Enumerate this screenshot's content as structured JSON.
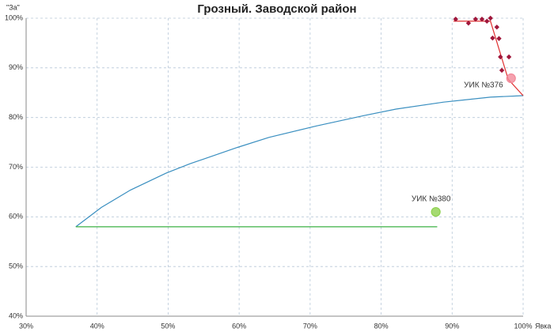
{
  "chart_data": {
    "type": "scatter",
    "title": "Грозный. Заводской район",
    "y_label": "\"За\"",
    "x_label": "Явка",
    "xlim": [
      30,
      100
    ],
    "ylim": [
      40,
      100
    ],
    "xticks": [
      {
        "value": 30,
        "label": "30%"
      },
      {
        "value": 40,
        "label": "40%"
      },
      {
        "value": 50,
        "label": "50%"
      },
      {
        "value": 60,
        "label": "60%"
      },
      {
        "value": 70,
        "label": "70%"
      },
      {
        "value": 80,
        "label": "80%"
      },
      {
        "value": 90,
        "label": "90%"
      },
      {
        "value": 100,
        "label": "100%"
      }
    ],
    "yticks": [
      {
        "value": 40,
        "label": "40%"
      },
      {
        "value": 50,
        "label": "50%"
      },
      {
        "value": 60,
        "label": "60%"
      },
      {
        "value": 70,
        "label": "70%"
      },
      {
        "value": 80,
        "label": "80%"
      },
      {
        "value": 90,
        "label": "90%"
      },
      {
        "value": 100,
        "label": "100%"
      }
    ],
    "grid": true,
    "series": [
      {
        "mode": "line",
        "color": "#3a8fc0",
        "x": [
          37.0,
          40.6,
          44.7,
          49.7,
          53.1,
          59.8,
          64.2,
          70.9,
          77.6,
          82.1,
          88.8,
          95.4,
          100
        ],
        "values": [
          58.0,
          61.9,
          65.4,
          68.8,
          70.7,
          74.0,
          76.0,
          78.3,
          80.4,
          81.7,
          83.1,
          84.1,
          84.4
        ]
      },
      {
        "mode": "line",
        "color": "#3cb043",
        "x": [
          37.0,
          87.9
        ],
        "values": [
          58.0,
          58.0
        ]
      },
      {
        "mode": "line",
        "color": "#e03030",
        "x": [
          90.2,
          95.4,
          97.9,
          100
        ],
        "values": [
          99.4,
          99.4,
          87.7,
          84.4
        ]
      },
      {
        "mode": "markers",
        "color": "#a0163a",
        "x": [
          90.5,
          92.3,
          93.3,
          94.2,
          94.9,
          95.4,
          95.7,
          96.3,
          96.6,
          96.8,
          98.0,
          97.0
        ],
        "values": [
          99.8,
          99.0,
          99.8,
          99.8,
          99.4,
          100,
          96.0,
          98.2,
          95.9,
          92.2,
          92.2,
          89.5
        ]
      }
    ],
    "annotations": [
      {
        "text": "УИК №376",
        "x": 98.3,
        "y": 87.9,
        "color": "#f28a9a"
      },
      {
        "text": "УИК №380",
        "x": 87.7,
        "y": 61.0,
        "color": "#8fd14f"
      }
    ]
  }
}
